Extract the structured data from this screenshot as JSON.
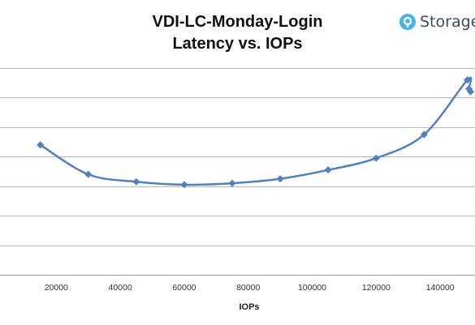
{
  "logo": {
    "text": "Storage",
    "icon": "storagereview-logo-icon",
    "color": "#4ab3e6"
  },
  "chart_data": {
    "type": "line",
    "title": [
      "VDI-LC-Monday-Login",
      "Latency vs. IOPs"
    ],
    "xlabel": "IOPs",
    "ylabel": "",
    "xlim": [
      0,
      150000
    ],
    "ylim": [
      0,
      7
    ],
    "x_ticks": [
      20000,
      40000,
      60000,
      80000,
      100000,
      120000,
      140000
    ],
    "grid": true,
    "legend": "none",
    "color": "#4f81bd",
    "series": [
      {
        "x": [
          15000,
          30000,
          45000,
          60000,
          75000,
          90000,
          105000,
          120000,
          135000,
          148500,
          149000,
          149500
        ],
        "y": [
          4.4,
          3.4,
          3.15,
          3.05,
          3.1,
          3.25,
          3.55,
          3.95,
          4.75,
          6.6,
          6.3,
          6.2
        ]
      }
    ]
  }
}
